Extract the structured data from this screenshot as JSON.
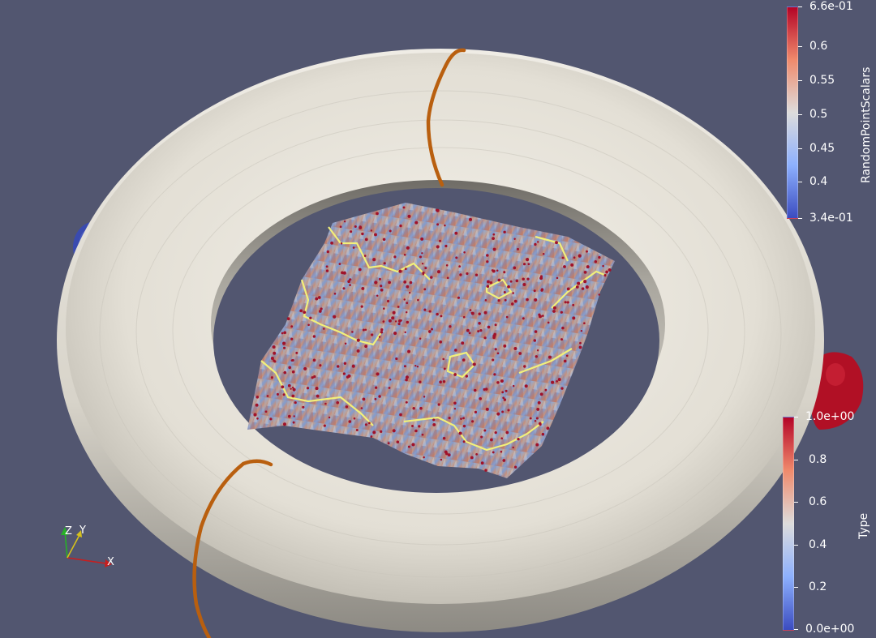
{
  "scene": {
    "background_color": "#525670",
    "torus_color": "#e9e5dc",
    "contour_color": "#b95f0f",
    "isoline_color": "#f2f07a",
    "glyph_color": "#a0122a",
    "blob_left_color": "#3a4bb0",
    "blob_right_color": "#b11025"
  },
  "legends": {
    "top": {
      "title": "RandomPointScalars",
      "labels": [
        "6.6e-01",
        "0.6",
        "0.55",
        "0.5",
        "0.45",
        "0.4",
        "3.4e-01"
      ],
      "colormap": "Cool to Warm"
    },
    "bottom": {
      "title": "Type",
      "labels": [
        "1.0e+00",
        "0.8",
        "0.6",
        "0.4",
        "0.2",
        "0.0e+00"
      ],
      "colormap": "Cool to Warm"
    }
  },
  "axes": {
    "x_label": "X",
    "y_label": "Y",
    "z_label": "Z"
  }
}
